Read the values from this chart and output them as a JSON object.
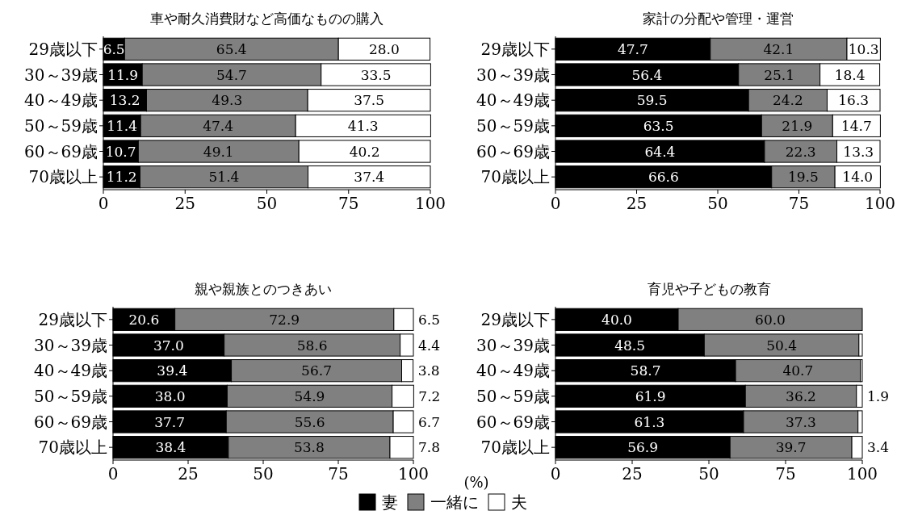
{
  "chart_data": [
    {
      "type": "bar",
      "orientation": "horizontal",
      "stacked": true,
      "title": "車や耐久消費財など高価なものの購入",
      "categories": [
        "29歳以下",
        "30～39歳",
        "40～49歳",
        "50～59歳",
        "60～69歳",
        "70歳以上"
      ],
      "xlim": [
        0,
        100
      ],
      "xticks": [
        0,
        25,
        50,
        75,
        100
      ],
      "legend": "bottom",
      "series": [
        {
          "name": "妻",
          "color": "#000000",
          "values": [
            6.5,
            11.9,
            13.2,
            11.4,
            10.7,
            11.2
          ],
          "value_labels": [
            "6.5",
            "11.9",
            "13.2",
            "11.4",
            "10.7",
            "11.2"
          ]
        },
        {
          "name": "一緒に",
          "color": "#808080",
          "values": [
            65.4,
            54.7,
            49.3,
            47.4,
            49.1,
            51.4
          ],
          "value_labels": [
            "65.4",
            "54.7",
            "49.3",
            "47.4",
            "49.1",
            "51.4"
          ]
        },
        {
          "name": "夫",
          "color": "#ffffff",
          "values": [
            28.0,
            33.5,
            37.5,
            41.3,
            40.2,
            37.4
          ],
          "value_labels": [
            "28.0",
            "33.5",
            "37.5",
            "41.3",
            "40.2",
            "37.4"
          ]
        }
      ]
    },
    {
      "type": "bar",
      "orientation": "horizontal",
      "stacked": true,
      "title": "家計の分配や管理・運営",
      "categories": [
        "29歳以下",
        "30～39歳",
        "40～49歳",
        "50～59歳",
        "60～69歳",
        "70歳以上"
      ],
      "xlim": [
        0,
        100
      ],
      "xticks": [
        0,
        25,
        50,
        75,
        100
      ],
      "legend": false,
      "series": [
        {
          "color": "#000000",
          "values": [
            47.7,
            56.4,
            59.5,
            63.5,
            64.4,
            66.6
          ],
          "value_labels": [
            "47.7",
            "56.4",
            "59.5",
            "63.5",
            "64.4",
            "66.6"
          ]
        },
        {
          "color": "#808080",
          "values": [
            42.1,
            25.1,
            24.2,
            21.9,
            22.3,
            19.5
          ],
          "value_labels": [
            "42.1",
            "25.1",
            "24.2",
            "21.9",
            "22.3",
            "19.5"
          ]
        },
        {
          "color": "#ffffff",
          "values": [
            10.3,
            18.4,
            16.3,
            14.7,
            13.3,
            14.0
          ],
          "value_labels": [
            "10.3",
            "18.4",
            "16.3",
            "14.7",
            "13.3",
            "14.0"
          ]
        }
      ]
    },
    {
      "type": "bar",
      "orientation": "horizontal",
      "stacked": true,
      "title": "親や親族とのつきあい",
      "categories": [
        "29歳以下",
        "30～39歳",
        "40～49歳",
        "50～59歳",
        "60～69歳",
        "70歳以上"
      ],
      "xlim": [
        0,
        100
      ],
      "xticks": [
        0,
        25,
        50,
        75,
        100
      ],
      "legend": false,
      "series": [
        {
          "color": "#000000",
          "values": [
            20.6,
            37.0,
            39.4,
            38.0,
            37.7,
            38.4
          ],
          "value_labels": [
            "20.6",
            "37.0",
            "39.4",
            "38.0",
            "37.7",
            "38.4"
          ]
        },
        {
          "color": "#808080",
          "values": [
            72.9,
            58.6,
            56.7,
            54.9,
            55.6,
            53.8
          ],
          "value_labels": [
            "72.9",
            "58.6",
            "56.7",
            "54.9",
            "55.6",
            "53.8"
          ]
        },
        {
          "color": "#ffffff",
          "values": [
            6.5,
            4.4,
            3.8,
            7.2,
            6.7,
            7.8
          ],
          "value_labels": [
            "6.5",
            "4.4",
            "3.8",
            "7.2",
            "6.7",
            "7.8"
          ]
        }
      ]
    },
    {
      "type": "bar",
      "orientation": "horizontal",
      "stacked": true,
      "title": "育児や子どもの教育",
      "categories": [
        "29歳以下",
        "30～39歳",
        "40～49歳",
        "50～59歳",
        "60～69歳",
        "70歳以上"
      ],
      "xlim": [
        0,
        100
      ],
      "xticks": [
        0,
        25,
        50,
        75,
        100
      ],
      "annotations": [
        "(%)"
      ],
      "series": [
        {
          "color": "#000000",
          "values": [
            40.0,
            48.5,
            58.7,
            61.9,
            61.3,
            56.9
          ],
          "value_labels": [
            "40.0",
            "48.5",
            "58.7",
            "61.9",
            "61.3",
            "56.9"
          ]
        },
        {
          "color": "#808080",
          "values": [
            60.0,
            50.4,
            40.7,
            36.2,
            37.3,
            39.7
          ],
          "value_labels": [
            "60.0",
            "50.4",
            "40.7",
            "36.2",
            "37.3",
            "39.7"
          ]
        },
        {
          "color": "#ffffff",
          "values": [
            0,
            1.1,
            0.6,
            1.9,
            1.4,
            3.4
          ],
          "value_labels": [
            null,
            null,
            null,
            "1.9",
            null,
            "3.4"
          ]
        }
      ]
    }
  ]
}
